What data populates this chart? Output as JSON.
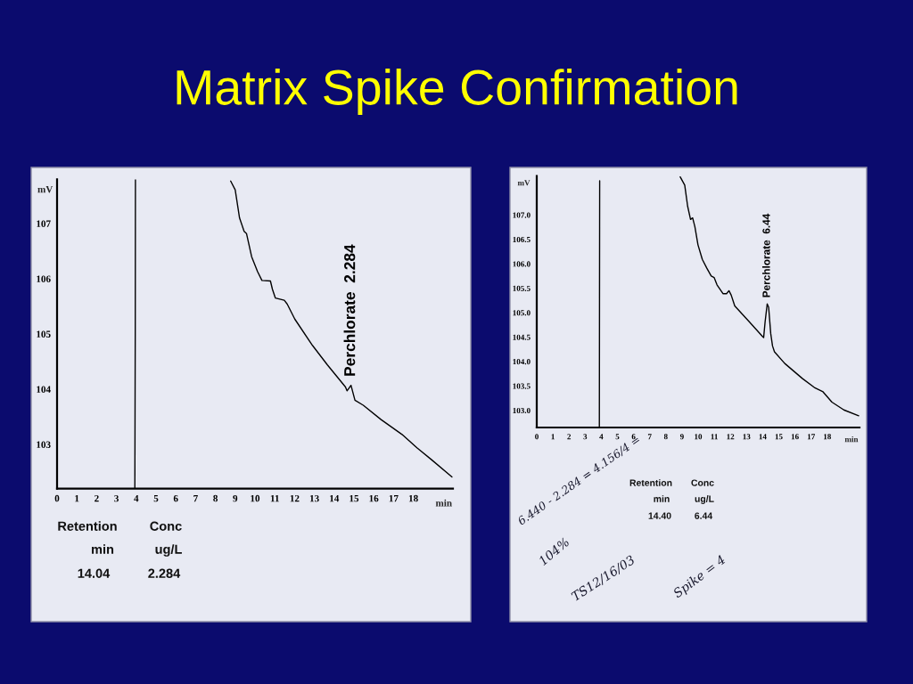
{
  "chart_data": [
    {
      "type": "line",
      "title": "Matrix Spike Confirmation",
      "xlabel": "min",
      "ylabel": "mV",
      "xlim": [
        0,
        20
      ],
      "ylim": [
        102.2,
        107.8
      ],
      "xticks": [
        0,
        1,
        2,
        3,
        4,
        5,
        6,
        7,
        8,
        9,
        10,
        11,
        12,
        13,
        14,
        15,
        16,
        17,
        18
      ],
      "yticks": [
        103,
        104,
        105,
        106,
        107
      ],
      "series": [
        {
          "color": "#000000",
          "x": [
            3.93,
            3.95,
            3.96,
            5.0,
            8.77,
            9.0,
            9.22,
            9.45,
            9.57,
            9.83,
            10.13,
            10.35,
            10.78,
            10.88,
            11.03,
            11.48,
            11.63,
            12.01,
            12.91,
            13.66,
            14.57,
            14.65,
            14.85,
            15.05,
            15.47,
            16.37,
            17.43,
            18.18,
            18.93,
            19.95
          ],
          "values": [
            102.2,
            105.0,
            107.8,
            null,
            107.77,
            107.61,
            107.1,
            106.86,
            106.82,
            106.4,
            106.13,
            105.97,
            105.96,
            105.81,
            105.65,
            105.61,
            105.54,
            105.27,
            104.79,
            104.44,
            104.04,
            103.97,
            104.07,
            103.8,
            103.71,
            103.45,
            103.18,
            102.94,
            102.72,
            102.41
          ]
        }
      ],
      "annotations": [
        {
          "text": "Perchlorate  2.284",
          "x": 14.85,
          "y": 104.07
        },
        "Retention",
        "Conc",
        "min",
        "ug/L",
        "14.04",
        "2.284"
      ]
    },
    {
      "type": "line",
      "xlabel": "min",
      "ylabel": "mV",
      "xlim": [
        0,
        20
      ],
      "ylim": [
        102.65,
        107.8
      ],
      "xticks": [
        0,
        1,
        2,
        3,
        4,
        5,
        6,
        7,
        8,
        9,
        10,
        11,
        12,
        13,
        14,
        15,
        16,
        17,
        18
      ],
      "yticks": [
        {
          "value": 103.0,
          "label": "103.0"
        },
        {
          "value": 103.5,
          "label": "103.5"
        },
        {
          "value": 104.0,
          "label": "104.0"
        },
        {
          "value": 104.5,
          "label": "104.5"
        },
        {
          "value": 105.0,
          "label": "105.0"
        },
        {
          "value": 105.5,
          "label": "105.5"
        },
        {
          "value": 106.0,
          "label": "106.0"
        },
        {
          "value": 106.5,
          "label": "106.5"
        },
        {
          "value": 107.0,
          "label": "107.0"
        }
      ],
      "series": [
        {
          "color": "#000000",
          "x": [
            3.88,
            3.89,
            3.9,
            5.0,
            8.89,
            9.17,
            9.35,
            9.53,
            9.66,
            9.8,
            9.99,
            10.26,
            10.54,
            10.81,
            10.99,
            11.17,
            11.54,
            11.76,
            11.91,
            12.05,
            12.27,
            13.18,
            14.0,
            14.06,
            14.15,
            14.28,
            14.37,
            14.5,
            14.61,
            14.73,
            15.37,
            16.47,
            17.2,
            17.74,
            18.29,
            19.03,
            19.95
          ],
          "values": [
            102.65,
            105.3,
            107.7,
            null,
            107.78,
            107.61,
            107.18,
            106.91,
            106.94,
            106.76,
            106.39,
            106.09,
            105.91,
            105.75,
            105.72,
            105.57,
            105.39,
            105.39,
            105.45,
            105.36,
            105.14,
            104.81,
            104.51,
            104.49,
            104.81,
            105.18,
            105.11,
            104.57,
            104.32,
            104.2,
            103.96,
            103.65,
            103.47,
            103.38,
            103.17,
            103.01,
            102.89
          ]
        }
      ],
      "annotations": [
        {
          "text": "Perchlorate  6.44",
          "x": 14.28,
          "y": 105.18
        },
        "Retention",
        "Conc",
        "min",
        "ug/L",
        "14.40",
        "6.44",
        "6.440 - 2.284 = 4.156/4 =",
        "104%",
        "TS12/16/03",
        "Spike = 4"
      ]
    }
  ]
}
